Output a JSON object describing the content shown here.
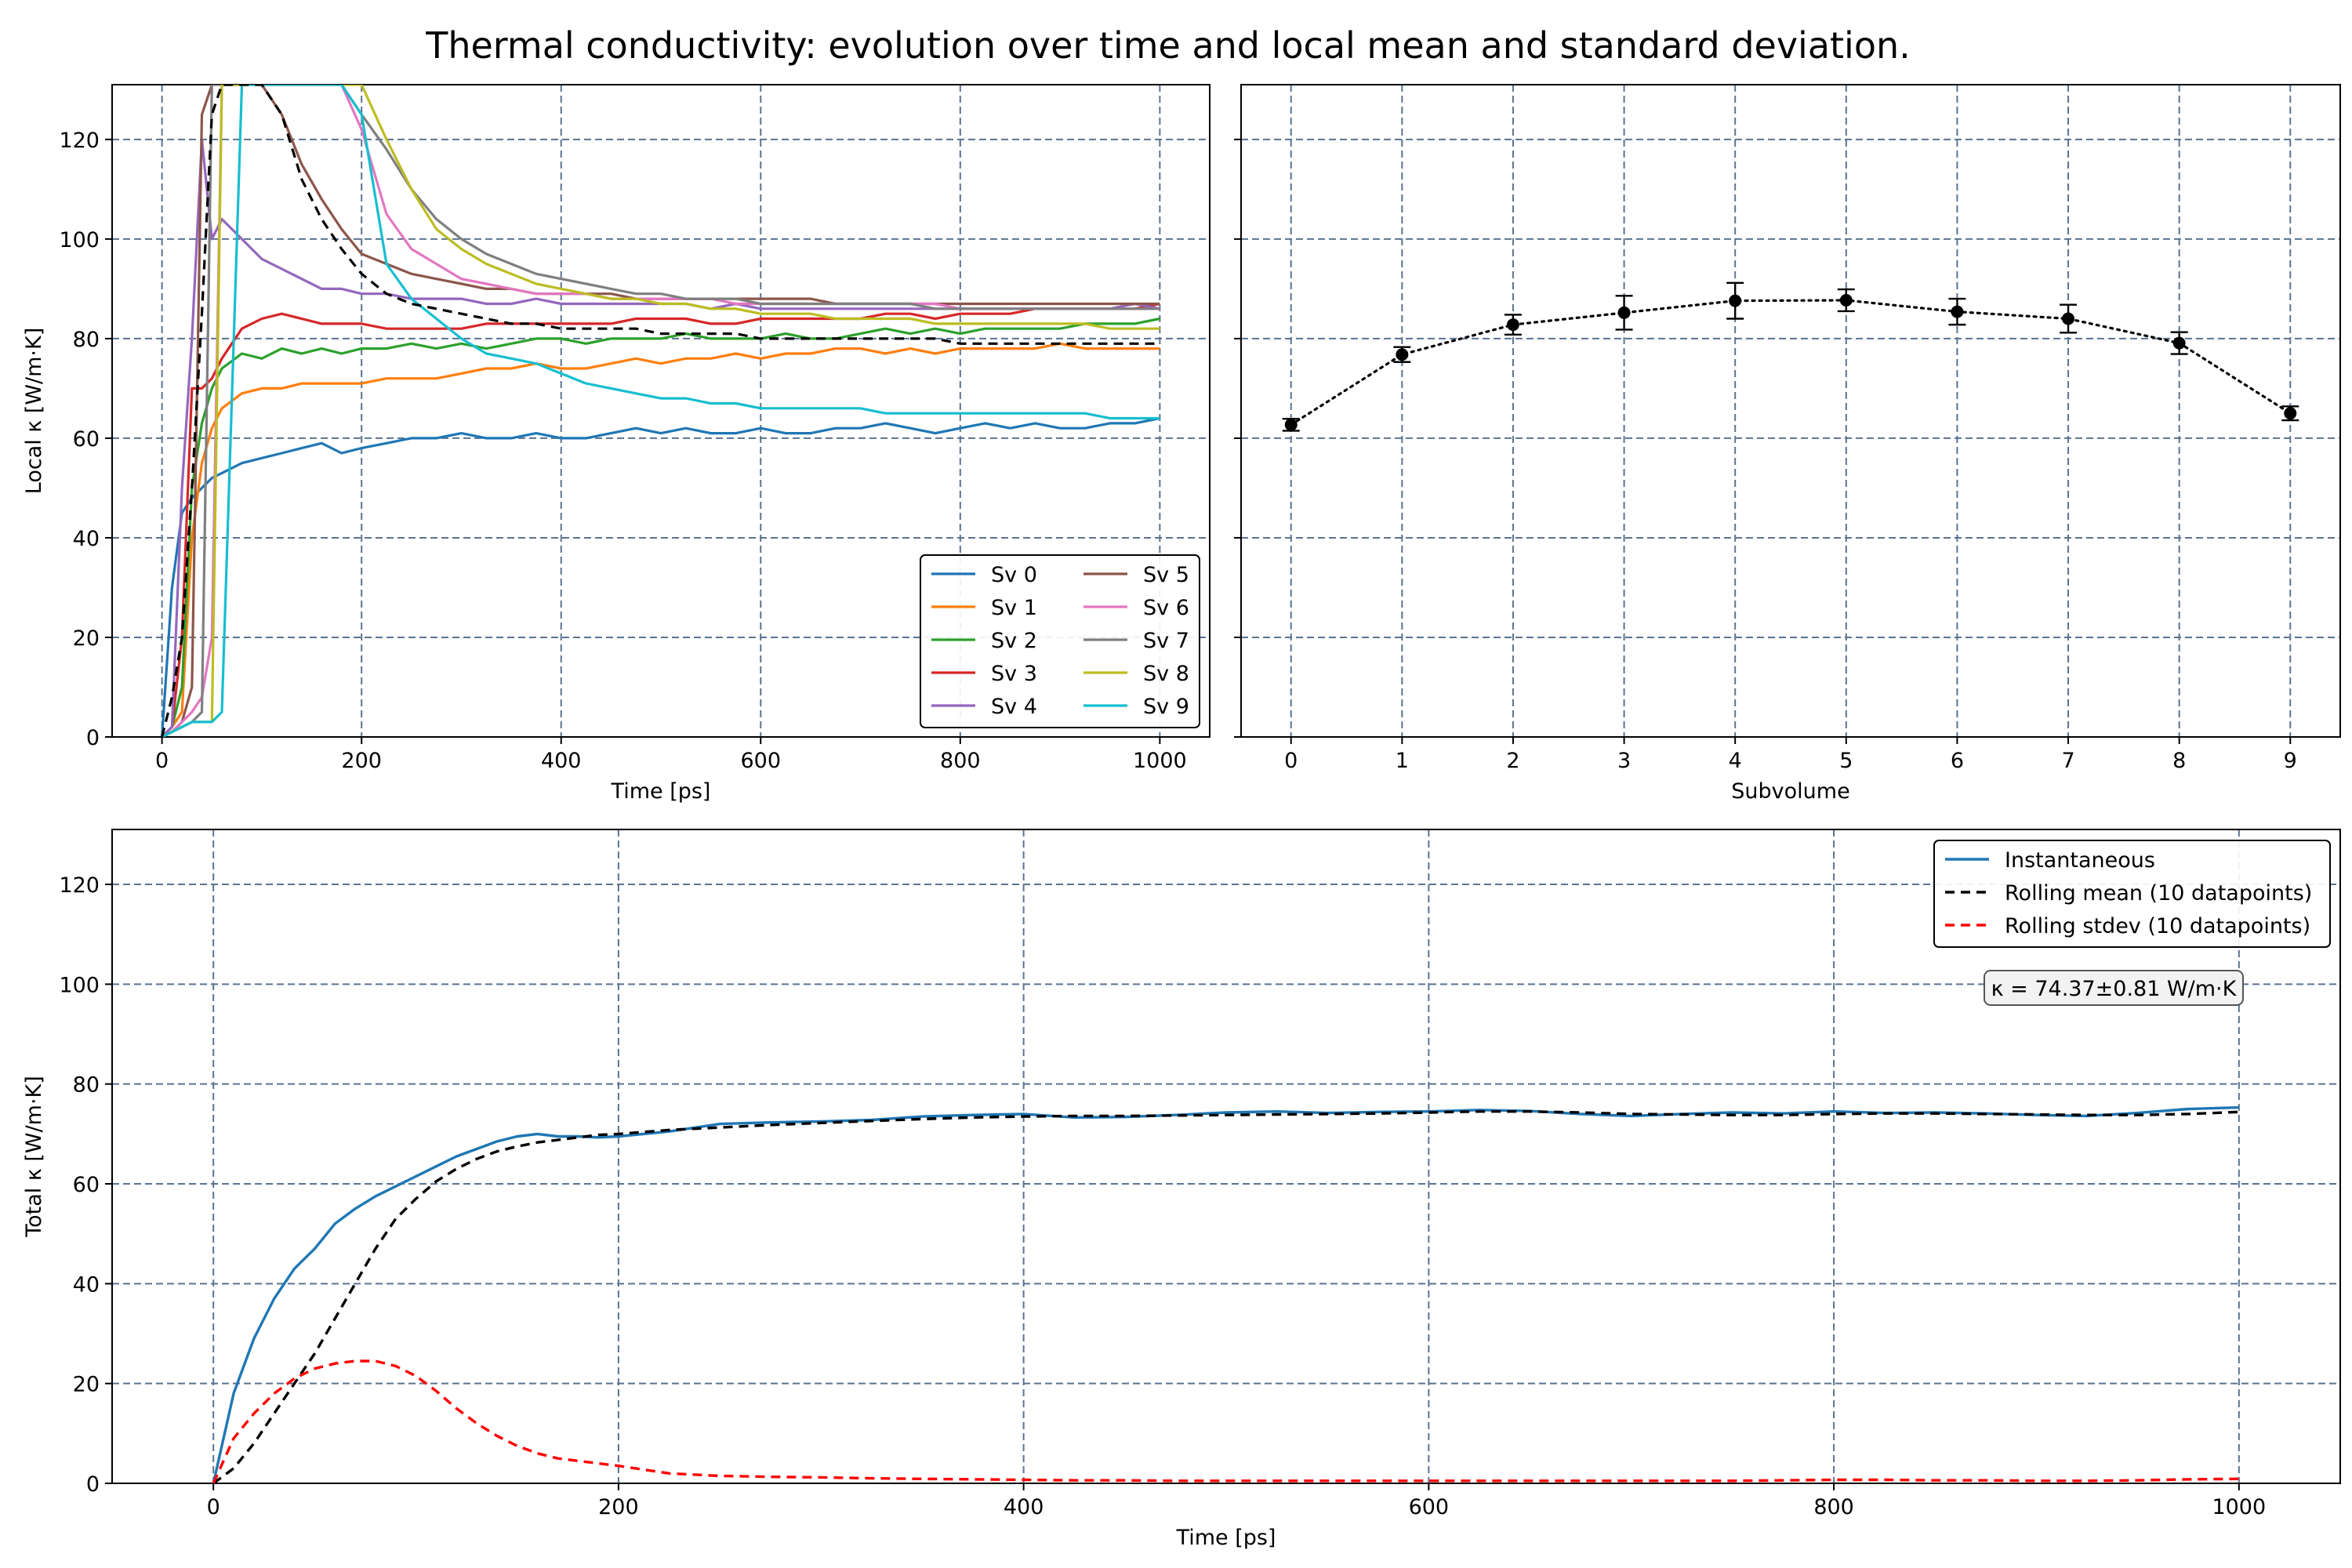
{
  "figure": {
    "title": "Thermal conductivity: evolution over time and local mean and standard deviation."
  },
  "chart_data": [
    {
      "id": "local",
      "type": "line",
      "xlabel": "Time [ps]",
      "ylabel": "Local κ [W/m·K]",
      "xlim": [
        -50,
        1050
      ],
      "ylim": [
        0,
        131
      ],
      "xticks": [
        0,
        200,
        400,
        600,
        800,
        1000
      ],
      "yticks": [
        0,
        20,
        40,
        60,
        80,
        100,
        120
      ],
      "grid": true,
      "legend": {
        "placement": "lower-right",
        "columns": 2
      },
      "x": [
        0,
        10,
        20,
        30,
        40,
        50,
        60,
        80,
        100,
        120,
        140,
        160,
        180,
        200,
        225,
        250,
        275,
        300,
        325,
        350,
        375,
        400,
        425,
        450,
        475,
        500,
        525,
        550,
        575,
        600,
        625,
        650,
        675,
        700,
        725,
        750,
        775,
        800,
        825,
        850,
        875,
        900,
        925,
        950,
        975,
        1000
      ],
      "series": [
        {
          "name": "Sv 0",
          "color": "#1f77b4",
          "values": [
            0,
            30,
            45,
            48,
            50,
            52,
            53,
            55,
            56,
            57,
            58,
            59,
            57,
            58,
            59,
            60,
            60,
            61,
            60,
            60,
            61,
            60,
            60,
            61,
            62,
            61,
            62,
            61,
            61,
            62,
            61,
            61,
            62,
            62,
            63,
            62,
            61,
            62,
            63,
            62,
            63,
            62,
            62,
            63,
            63,
            64
          ]
        },
        {
          "name": "Sv 1",
          "color": "#ff7f0e",
          "values": [
            0,
            2,
            5,
            40,
            55,
            62,
            66,
            69,
            70,
            70,
            71,
            71,
            71,
            71,
            72,
            72,
            72,
            73,
            74,
            74,
            75,
            74,
            74,
            75,
            76,
            75,
            76,
            76,
            77,
            76,
            77,
            77,
            78,
            78,
            77,
            78,
            77,
            78,
            78,
            78,
            78,
            79,
            78,
            78,
            78,
            78
          ]
        },
        {
          "name": "Sv 2",
          "color": "#2ca02c",
          "values": [
            0,
            2,
            10,
            50,
            63,
            70,
            74,
            77,
            76,
            78,
            77,
            78,
            77,
            78,
            78,
            79,
            78,
            79,
            78,
            79,
            80,
            80,
            79,
            80,
            80,
            80,
            81,
            80,
            80,
            80,
            81,
            80,
            80,
            81,
            82,
            81,
            82,
            81,
            82,
            82,
            82,
            82,
            83,
            83,
            83,
            84
          ]
        },
        {
          "name": "Sv 3",
          "color": "#d62728",
          "values": [
            0,
            2,
            20,
            70,
            70,
            72,
            76,
            82,
            84,
            85,
            84,
            83,
            83,
            83,
            82,
            82,
            82,
            82,
            83,
            83,
            83,
            83,
            83,
            83,
            84,
            84,
            84,
            83,
            83,
            84,
            84,
            84,
            84,
            84,
            85,
            85,
            84,
            85,
            85,
            85,
            86,
            86,
            86,
            86,
            86,
            87
          ]
        },
        {
          "name": "Sv 4",
          "color": "#9467bd",
          "values": [
            0,
            2,
            50,
            80,
            120,
            100,
            104,
            100,
            96,
            94,
            92,
            90,
            90,
            89,
            89,
            88,
            88,
            88,
            87,
            87,
            88,
            87,
            87,
            87,
            87,
            87,
            87,
            86,
            87,
            86,
            86,
            86,
            86,
            86,
            86,
            86,
            86,
            86,
            86,
            86,
            86,
            86,
            86,
            86,
            87,
            86
          ]
        },
        {
          "name": "Sv 5",
          "color": "#8c564b",
          "values": [
            0,
            1,
            3,
            10,
            125,
            131,
            131,
            131,
            131,
            125,
            115,
            108,
            102,
            97,
            95,
            93,
            92,
            91,
            90,
            90,
            89,
            89,
            89,
            89,
            88,
            88,
            88,
            88,
            88,
            88,
            88,
            88,
            87,
            87,
            87,
            87,
            87,
            87,
            87,
            87,
            87,
            87,
            87,
            87,
            87,
            87
          ]
        },
        {
          "name": "Sv 6",
          "color": "#e377c2",
          "values": [
            0,
            1,
            3,
            5,
            8,
            20,
            131,
            131,
            131,
            131,
            131,
            131,
            131,
            122,
            105,
            98,
            95,
            92,
            91,
            90,
            89,
            89,
            89,
            88,
            88,
            88,
            88,
            88,
            87,
            87,
            87,
            87,
            87,
            87,
            87,
            87,
            87,
            86,
            86,
            86,
            86,
            86,
            86,
            86,
            86,
            86
          ]
        },
        {
          "name": "Sv 7",
          "color": "#7f7f7f",
          "values": [
            0,
            1,
            2,
            3,
            5,
            131,
            131,
            131,
            131,
            131,
            131,
            131,
            131,
            125,
            118,
            110,
            104,
            100,
            97,
            95,
            93,
            92,
            91,
            90,
            89,
            89,
            88,
            88,
            88,
            87,
            87,
            87,
            87,
            87,
            87,
            87,
            86,
            86,
            86,
            86,
            86,
            86,
            86,
            86,
            86,
            86
          ]
        },
        {
          "name": "Sv 8",
          "color": "#bcbd22",
          "values": [
            0,
            1,
            2,
            3,
            3,
            3,
            131,
            131,
            131,
            131,
            131,
            131,
            131,
            131,
            120,
            110,
            102,
            98,
            95,
            93,
            91,
            90,
            89,
            88,
            88,
            87,
            87,
            86,
            86,
            85,
            85,
            85,
            84,
            84,
            84,
            84,
            83,
            83,
            83,
            83,
            83,
            83,
            83,
            82,
            82,
            82
          ]
        },
        {
          "name": "Sv 9",
          "color": "#17becf",
          "values": [
            0,
            1,
            2,
            3,
            3,
            3,
            5,
            131,
            131,
            131,
            131,
            131,
            131,
            125,
            95,
            88,
            84,
            80,
            77,
            76,
            75,
            73,
            71,
            70,
            69,
            68,
            68,
            67,
            67,
            66,
            66,
            66,
            66,
            66,
            65,
            65,
            65,
            65,
            65,
            65,
            65,
            65,
            65,
            64,
            64,
            64
          ]
        }
      ],
      "mean": {
        "color": "#000000",
        "values": [
          0,
          8,
          20,
          50,
          85,
          125,
          131,
          131,
          131,
          125,
          112,
          104,
          98,
          93,
          89,
          87,
          86,
          85,
          84,
          83,
          83,
          82,
          82,
          82,
          82,
          81,
          81,
          81,
          81,
          80,
          80,
          80,
          80,
          80,
          80,
          80,
          80,
          79,
          79,
          79,
          79,
          79,
          79,
          79,
          79,
          79
        ]
      }
    },
    {
      "id": "subvolume",
      "type": "scatter",
      "xlabel": "Subvolume",
      "ylabel": "",
      "xlim": [
        -0.45,
        9.45
      ],
      "ylim": [
        0,
        131
      ],
      "xticks": [
        0,
        1,
        2,
        3,
        4,
        5,
        6,
        7,
        8,
        9
      ],
      "grid": true,
      "x": [
        0,
        1,
        2,
        3,
        4,
        5,
        6,
        7,
        8,
        9
      ],
      "values": [
        62.7,
        76.8,
        82.8,
        85.2,
        87.6,
        87.7,
        85.4,
        84.0,
        79.1,
        65.0
      ],
      "errors": [
        1.2,
        1.5,
        2.0,
        3.4,
        3.6,
        2.2,
        2.6,
        2.8,
        2.2,
        1.4
      ],
      "color": "#000000"
    },
    {
      "id": "total",
      "type": "line",
      "xlabel": "Time [ps]",
      "ylabel": "Total κ [W/m·K]",
      "xlim": [
        -50,
        1050
      ],
      "ylim": [
        0,
        131
      ],
      "xticks": [
        0,
        200,
        400,
        600,
        800,
        1000
      ],
      "yticks": [
        0,
        20,
        40,
        60,
        80,
        100,
        120
      ],
      "grid": true,
      "legend": {
        "placement": "top-right",
        "columns": 1
      },
      "annotation": "κ = 74.37±0.81 W/m·K",
      "x": [
        0,
        10,
        20,
        30,
        40,
        50,
        60,
        70,
        80,
        90,
        100,
        110,
        120,
        130,
        140,
        150,
        160,
        170,
        180,
        190,
        200,
        225,
        250,
        275,
        300,
        325,
        350,
        375,
        400,
        425,
        450,
        475,
        500,
        525,
        550,
        575,
        600,
        625,
        650,
        675,
        700,
        725,
        750,
        775,
        800,
        825,
        850,
        875,
        900,
        925,
        950,
        975,
        1000
      ],
      "series": [
        {
          "name": "Instantaneous",
          "color": "#1f77b4",
          "dash": "",
          "values": [
            0,
            18,
            29,
            37,
            43,
            47,
            52,
            55,
            57.5,
            59.5,
            61.5,
            63.5,
            65.5,
            67,
            68.5,
            69.5,
            70,
            69.5,
            69.5,
            69.3,
            69.5,
            70.5,
            72,
            72.3,
            72.5,
            72.8,
            73.5,
            73.8,
            74,
            73.3,
            73.4,
            73.8,
            74.3,
            74.5,
            74.2,
            74.4,
            74.5,
            74.8,
            74.6,
            74,
            73.6,
            74,
            74.3,
            74.1,
            74.5,
            74.2,
            74.3,
            74.1,
            73.8,
            73.6,
            74.2,
            75,
            75.3
          ]
        },
        {
          "name": "Rolling mean (10 datapoints)",
          "color": "#000000",
          "dash": "12,8",
          "values": [
            0,
            3,
            8,
            14,
            20,
            26,
            33,
            40,
            47,
            53,
            57,
            60.5,
            63,
            65,
            66.5,
            67.5,
            68.3,
            68.8,
            69.3,
            69.8,
            70,
            70.8,
            71.3,
            71.8,
            72.2,
            72.6,
            73,
            73.3,
            73.5,
            73.6,
            73.6,
            73.7,
            73.8,
            73.9,
            74,
            74.1,
            74.3,
            74.5,
            74.5,
            74.3,
            74,
            73.9,
            73.8,
            73.8,
            74,
            74.1,
            74.1,
            74,
            73.9,
            73.8,
            73.8,
            74,
            74.4
          ]
        },
        {
          "name": "Rolling stdev (10 datapoints)",
          "color": "#ff0000",
          "dash": "12,8",
          "values": [
            0,
            9,
            14,
            18,
            21,
            23,
            24,
            24.5,
            24.5,
            23.5,
            21.5,
            18.5,
            15,
            12,
            9.5,
            7.5,
            6,
            5,
            4.5,
            4,
            3.5,
            2,
            1.5,
            1.3,
            1.2,
            1,
            0.9,
            0.8,
            0.7,
            0.6,
            0.6,
            0.5,
            0.5,
            0.5,
            0.5,
            0.5,
            0.5,
            0.5,
            0.5,
            0.5,
            0.5,
            0.5,
            0.5,
            0.6,
            0.7,
            0.7,
            0.6,
            0.6,
            0.5,
            0.5,
            0.6,
            0.8,
            0.9
          ]
        }
      ]
    }
  ]
}
